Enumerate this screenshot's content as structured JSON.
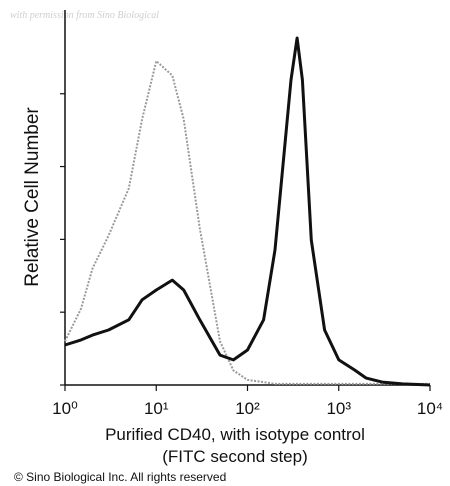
{
  "chart_data": {
    "type": "line",
    "watermark": "with permission from Sino Biological",
    "ylabel": "Relative Cell Number",
    "xlabel": [
      "Purified CD40, with isotype control",
      "(FITC second step)"
    ],
    "footer": "© Sino Biological Inc. All rights reserved",
    "xscale": "log",
    "x": [
      1,
      1.5,
      2,
      3,
      5,
      7,
      10,
      15,
      20,
      30,
      50,
      70,
      100,
      150,
      200,
      300,
      350,
      400,
      500,
      700,
      1000,
      1500,
      2000,
      3000,
      5000,
      10000
    ],
    "series": [
      {
        "name": "isotype control",
        "color": "#9a9a9a",
        "dashed": true,
        "values": [
          12,
          21,
          32,
          41,
          54,
          73,
          89,
          85,
          73,
          43,
          12,
          4,
          1.4,
          0.8,
          0.3,
          0.3,
          0.3,
          0.3,
          0.3,
          0.3,
          0.3,
          0.3,
          0.3,
          0.3,
          0.3,
          0.3
        ]
      },
      {
        "name": "Purified CD40",
        "color": "#111111",
        "dashed": false,
        "values": [
          11,
          12.4,
          13.7,
          15.1,
          17.9,
          23.4,
          26.1,
          28.8,
          26.1,
          17.9,
          8.2,
          6.9,
          9.6,
          17.9,
          37.1,
          83.8,
          95.3,
          83.8,
          39.8,
          15.1,
          6.9,
          4.1,
          1.9,
          0.8,
          0.3,
          0
        ]
      }
    ],
    "xlim": [
      1,
      10000
    ],
    "xticks": [
      {
        "value": 1,
        "label": "10⁰"
      },
      {
        "value": 10,
        "label": "10¹"
      },
      {
        "value": 100,
        "label": "10²"
      },
      {
        "value": 1000,
        "label": "10³"
      },
      {
        "value": 10000,
        "label": "10⁴"
      }
    ],
    "ylim": [
      0,
      103
    ],
    "yticks": [
      0,
      20,
      40,
      60,
      80
    ]
  }
}
